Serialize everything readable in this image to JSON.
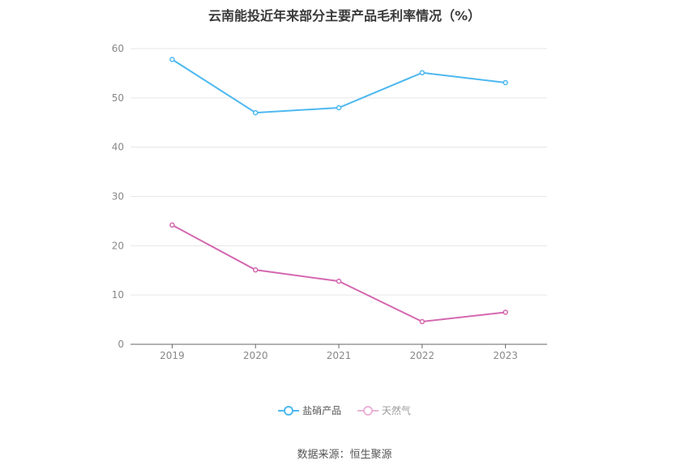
{
  "chart_data": {
    "type": "line",
    "title": "云南能投近年来部分主要产品毛利率情况（%）",
    "categories": [
      "2019",
      "2020",
      "2021",
      "2022",
      "2023"
    ],
    "series": [
      {
        "name": "盐硝产品",
        "color": "#4db8f0",
        "values": [
          57.8,
          47.0,
          48.0,
          55.1,
          53.1
        ]
      },
      {
        "name": "天然气",
        "color": "#d468b0",
        "values": [
          24.2,
          15.1,
          12.8,
          4.6,
          6.5
        ]
      }
    ],
    "ylim": [
      0,
      60
    ],
    "yticks": [
      0,
      10,
      20,
      30,
      40,
      50,
      60
    ],
    "grid": true,
    "legend": "bottom-center"
  },
  "legend_items": [
    {
      "label": "盐硝产品"
    },
    {
      "label": "天然气"
    }
  ],
  "source": "数据来源：恒生聚源"
}
